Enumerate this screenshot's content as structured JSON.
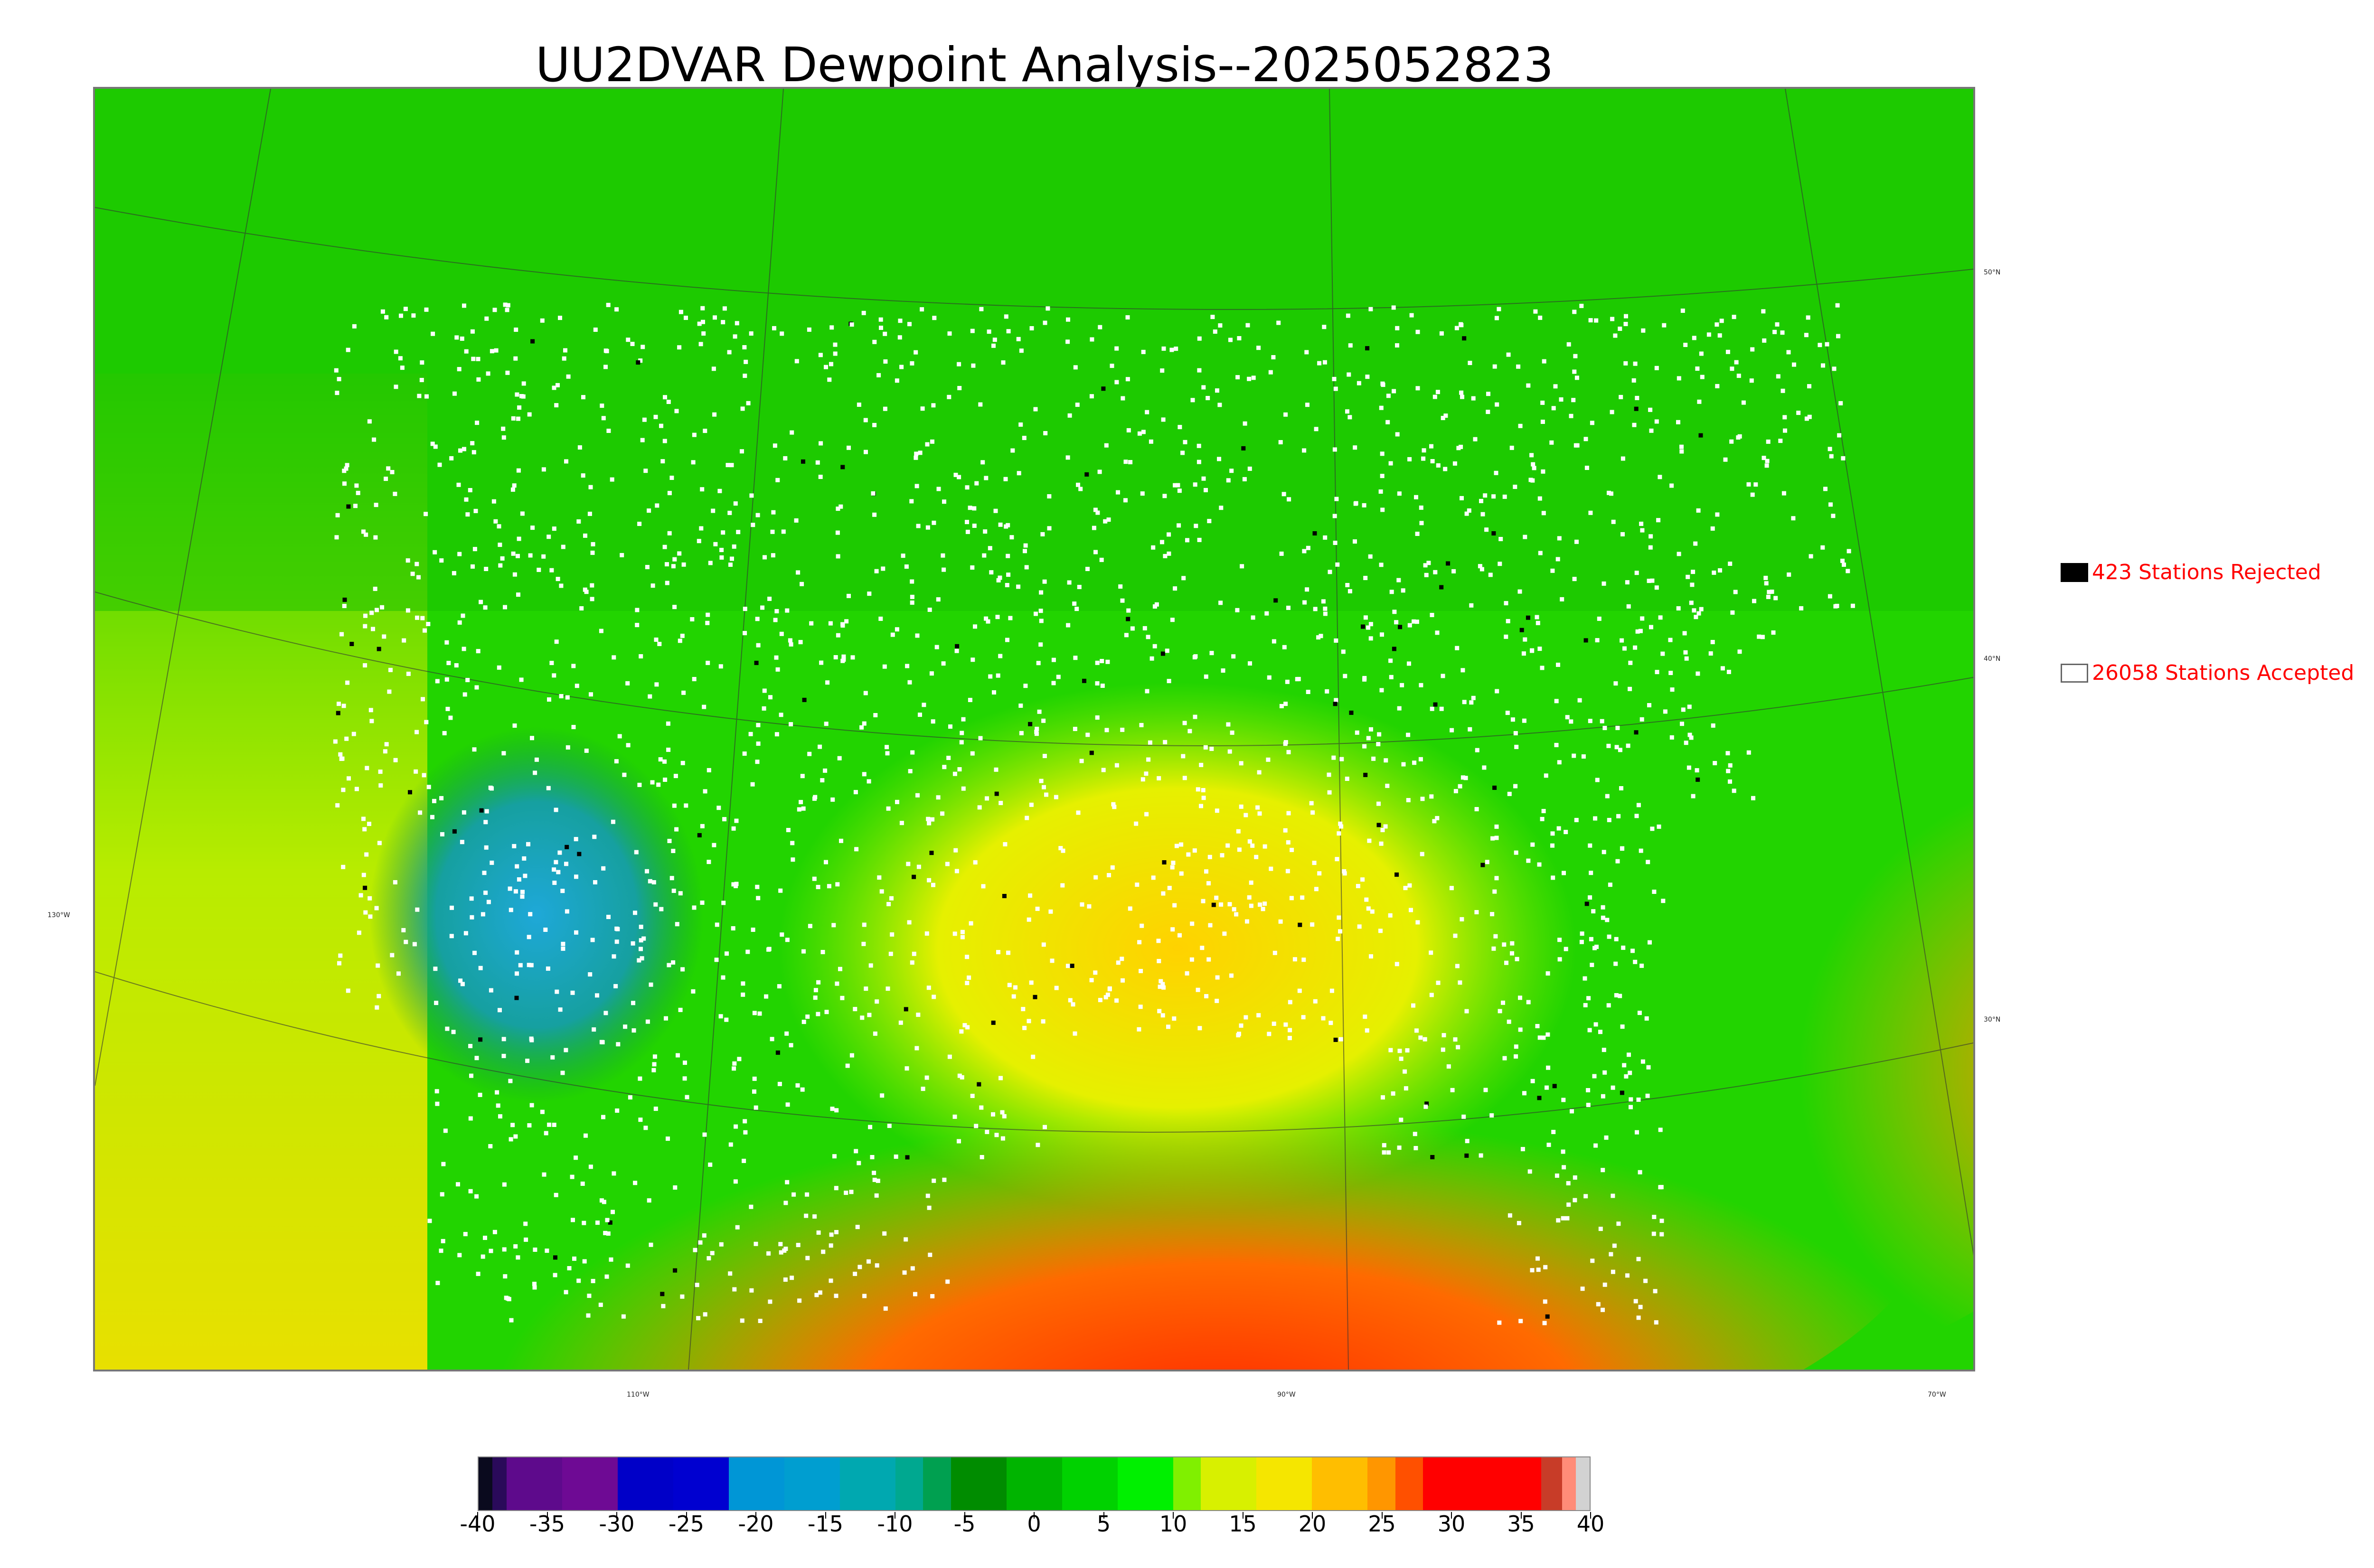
{
  "title": "UU2DVAR Dewpoint Analysis--2025052823",
  "map": {
    "latitude_labels": [
      "50°N",
      "40°N",
      "30°N"
    ],
    "longitude_labels": [
      "130°W",
      "110°W",
      "90°W",
      "70°W"
    ]
  },
  "legend": {
    "rejected_label": "423 Stations Rejected",
    "accepted_label": "26058 Stations Accepted",
    "rejected_color": "#000000",
    "accepted_color": "#ffffff"
  },
  "colorbar": {
    "ticks": [
      "-40",
      "-35",
      "-30",
      "-25",
      "-20",
      "-15",
      "-10",
      "-5",
      "0",
      "5",
      "10",
      "15",
      "20",
      "25",
      "30",
      "35",
      "40"
    ],
    "range": [
      -40,
      40
    ],
    "segments": [
      {
        "from": -40,
        "to": -39,
        "color": "#0a0a1e"
      },
      {
        "from": -39,
        "to": -38,
        "color": "#2a0a5a"
      },
      {
        "from": -38,
        "to": -34,
        "color": "#5e0a8c"
      },
      {
        "from": -34,
        "to": -30,
        "color": "#6e0a94"
      },
      {
        "from": -30,
        "to": -26,
        "color": "#0000c8"
      },
      {
        "from": -26,
        "to": -22,
        "color": "#0000d0"
      },
      {
        "from": -22,
        "to": -18,
        "color": "#0096d6"
      },
      {
        "from": -18,
        "to": -14,
        "color": "#009ed0"
      },
      {
        "from": -14,
        "to": -10,
        "color": "#00a8b0"
      },
      {
        "from": -10,
        "to": -8,
        "color": "#00a890"
      },
      {
        "from": -8,
        "to": -6,
        "color": "#00a050"
      },
      {
        "from": -6,
        "to": -2,
        "color": "#008c00"
      },
      {
        "from": -2,
        "to": 2,
        "color": "#00b400"
      },
      {
        "from": 2,
        "to": 6,
        "color": "#00d200"
      },
      {
        "from": 6,
        "to": 10,
        "color": "#00f000"
      },
      {
        "from": 10,
        "to": 12,
        "color": "#80f000"
      },
      {
        "from": 12,
        "to": 16,
        "color": "#d8f000"
      },
      {
        "from": 16,
        "to": 20,
        "color": "#f5e600"
      },
      {
        "from": 20,
        "to": 24,
        "color": "#ffbe00"
      },
      {
        "from": 24,
        "to": 26,
        "color": "#ff9600"
      },
      {
        "from": 26,
        "to": 28,
        "color": "#ff5000"
      },
      {
        "from": 28,
        "to": 36.5,
        "color": "#ff0000"
      },
      {
        "from": 36.5,
        "to": 38,
        "color": "#c83c28"
      },
      {
        "from": 38,
        "to": 39,
        "color": "#ff8c78"
      },
      {
        "from": 39,
        "to": 40,
        "color": "#d2d2d2"
      }
    ]
  }
}
